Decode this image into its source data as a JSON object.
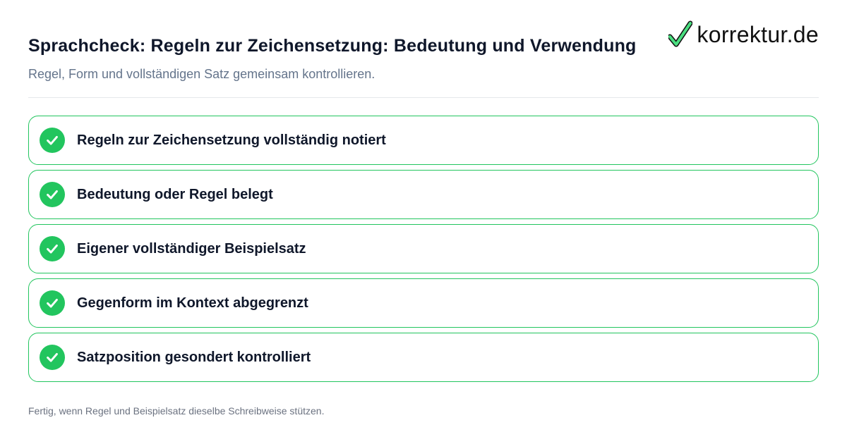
{
  "brand": {
    "name": "korrektur.de",
    "accent": "#22c55e",
    "logo_icon": "checkmark-icon"
  },
  "header": {
    "title": "Sprachcheck: Regeln zur Zeichensetzung: Bedeutung und Verwendung",
    "subtitle": "Regel, Form und vollständigen Satz gemeinsam kontrollieren."
  },
  "checklist": {
    "items": [
      {
        "label": "Regeln zur Zeichensetzung vollständig notiert",
        "checked": true,
        "icon": "check-circle-icon"
      },
      {
        "label": "Bedeutung oder Regel belegt",
        "checked": true,
        "icon": "check-circle-icon"
      },
      {
        "label": "Eigener vollständiger Beispielsatz",
        "checked": true,
        "icon": "check-circle-icon"
      },
      {
        "label": "Gegenform im Kontext abgegrenzt",
        "checked": true,
        "icon": "check-circle-icon"
      },
      {
        "label": "Satzposition gesondert kontrolliert",
        "checked": true,
        "icon": "check-circle-icon"
      }
    ]
  },
  "footer": {
    "text": "Fertig, wenn Regel und Beispielsatz dieselbe Schreibweise stützen."
  }
}
